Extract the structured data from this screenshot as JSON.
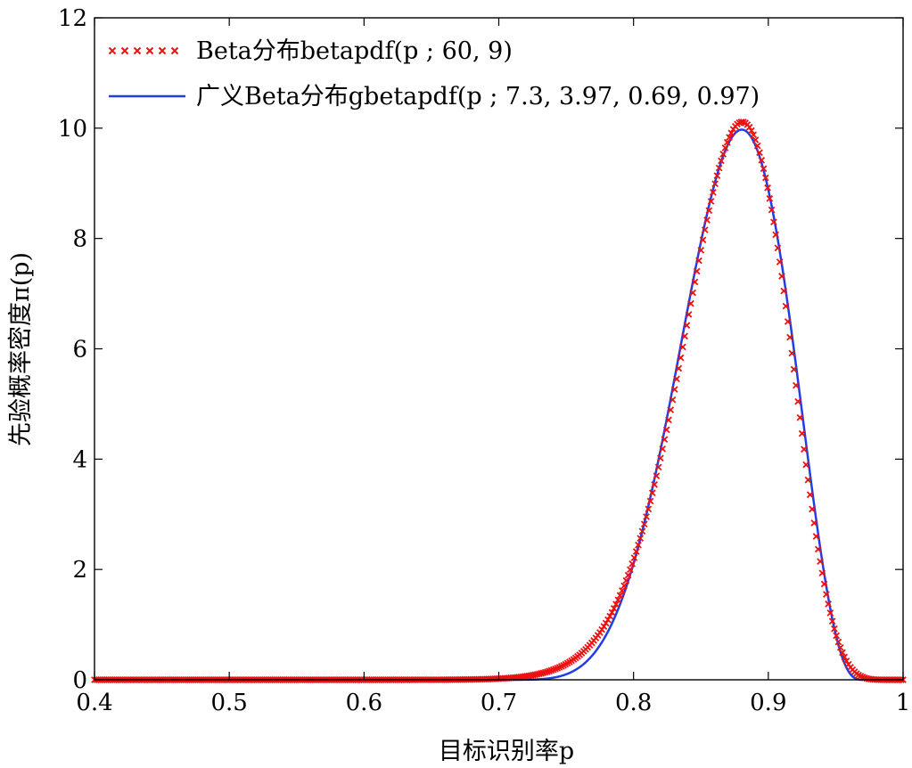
{
  "chart_data": {
    "type": "line",
    "title": "",
    "xlabel": "目标识别率p",
    "ylabel": "先验概率密度π(p)",
    "xlim": [
      0.4,
      1.0
    ],
    "ylim": [
      0,
      12
    ],
    "xticks": [
      0.4,
      0.5,
      0.6,
      0.7,
      0.8,
      0.9,
      1.0
    ],
    "xtick_labels": [
      "0.4",
      "0.5",
      "0.6",
      "0.7",
      "0.8",
      "0.9",
      "1"
    ],
    "yticks": [
      0,
      2,
      4,
      6,
      8,
      10,
      12
    ],
    "ytick_labels": [
      "0",
      "2",
      "4",
      "6",
      "8",
      "10",
      "12"
    ],
    "grid": false,
    "legend_position": "top-left",
    "series": [
      {
        "name": "Beta分布betapdf(p ; 60, 9)",
        "style": "x-markers",
        "color": "#ee1111",
        "distribution": "beta",
        "params": {
          "a": 60,
          "b": 9
        }
      },
      {
        "name": "广义Beta分布gbetapdf(p ; 7.3, 3.97, 0.69, 0.97)",
        "style": "solid-line",
        "color": "#1f3fe6",
        "distribution": "generalized-beta",
        "params": {
          "a": 7.3,
          "b": 3.97,
          "lower": 0.69,
          "upper": 0.97
        }
      }
    ]
  }
}
